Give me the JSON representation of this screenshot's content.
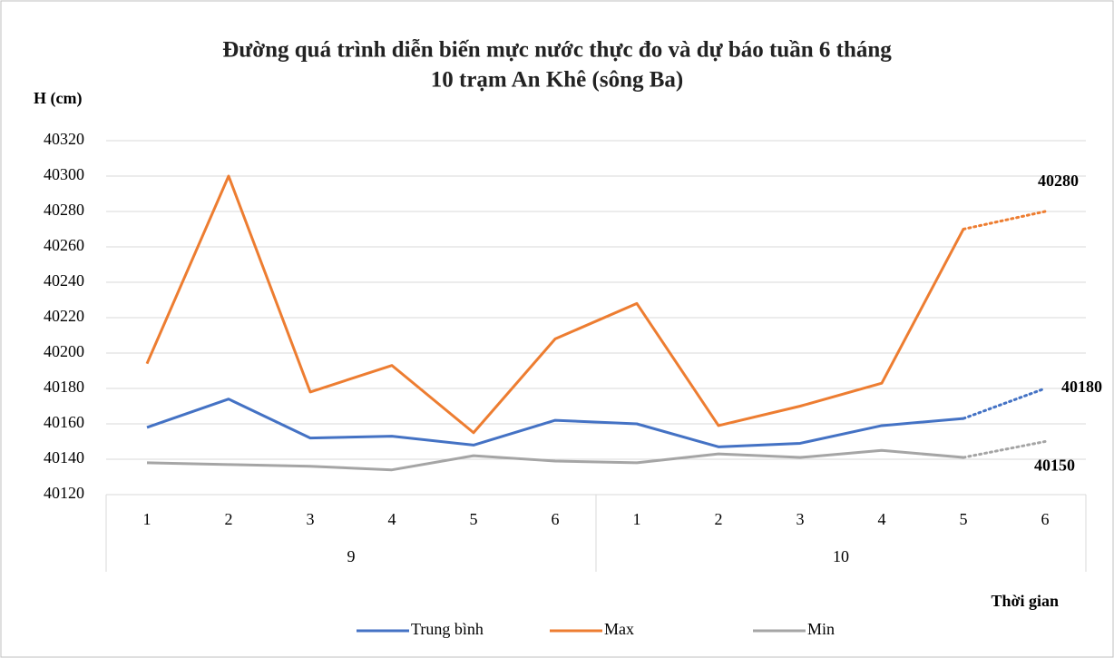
{
  "chart_data": {
    "type": "line",
    "title": [
      "Đường quá trình diễn biến mực nước thực đo và dự báo tuần 6 tháng",
      "10 trạm An Khê (sông Ba)"
    ],
    "y_label": "H (cm)",
    "x_label": "Thời gian",
    "categories": [
      "1",
      "2",
      "3",
      "4",
      "5",
      "6",
      "1",
      "2",
      "3",
      "4",
      "5",
      "6"
    ],
    "groups": [
      {
        "name": "9",
        "count": 6
      },
      {
        "name": "10",
        "count": 6
      }
    ],
    "series": [
      {
        "name": "Trung bình",
        "color": "#4472c4",
        "values": [
          40158,
          40174,
          40152,
          40153,
          40148,
          40162,
          40160,
          40147,
          40149,
          40159,
          40163,
          40180
        ]
      },
      {
        "name": "Max",
        "color": "#ed7d31",
        "values": [
          40194,
          40300,
          40178,
          40193,
          40155,
          40208,
          40228,
          40159,
          40170,
          40183,
          40270,
          40280
        ]
      },
      {
        "name": "Min",
        "color": "#a5a5a5",
        "values": [
          40138,
          40137,
          40136,
          40134,
          40142,
          40139,
          40138,
          40143,
          40141,
          40145,
          40141,
          40150
        ]
      }
    ],
    "forecast_start": 10,
    "ylim": [
      40120,
      40320
    ],
    "yticks": [
      40120,
      40140,
      40160,
      40180,
      40200,
      40220,
      40240,
      40260,
      40280,
      40300,
      40320
    ],
    "grid": true,
    "legend": "bottom"
  }
}
